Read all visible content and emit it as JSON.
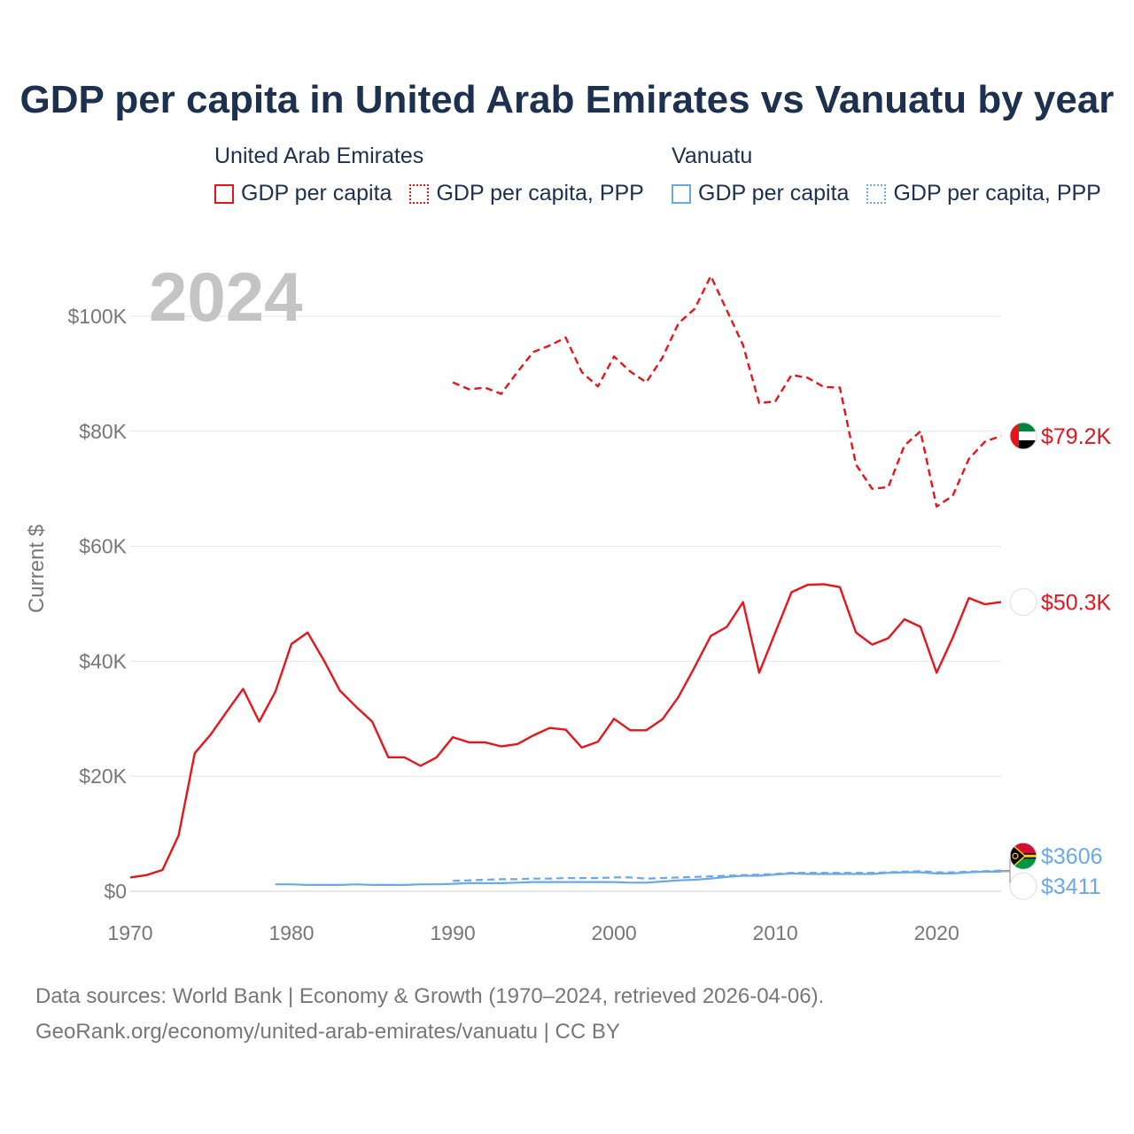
{
  "chart_data": {
    "type": "line",
    "title": "GDP per capita in United Arab Emirates vs Vanuatu by year",
    "year_label": "2024",
    "ylabel": "Current $",
    "xlabel": "",
    "xlim": [
      1970,
      2024
    ],
    "ylim": [
      0,
      110000
    ],
    "x_ticks": [
      1970,
      1980,
      1990,
      2000,
      2010,
      2020
    ],
    "y_ticks": [
      0,
      20000,
      40000,
      60000,
      80000,
      100000
    ],
    "y_tick_labels": [
      "$0",
      "$20K",
      "$40K",
      "$60K",
      "$80K",
      "$100K"
    ],
    "grid": true,
    "legend": {
      "groups": [
        {
          "country": "United Arab Emirates",
          "items": [
            "GDP per capita",
            "GDP per capita, PPP"
          ],
          "color": "#e8141b"
        },
        {
          "country": "Vanuatu",
          "items": [
            "GDP per capita",
            "GDP per capita, PPP"
          ],
          "color": "#6aa8e8"
        }
      ],
      "position": "top"
    },
    "series": [
      {
        "name": "United Arab Emirates GDP per capita",
        "country": "United Arab Emirates",
        "style": "solid",
        "color": "#e8141b",
        "end_label": "$50.3K",
        "x": [
          1970,
          1971,
          1972,
          1973,
          1974,
          1975,
          1976,
          1977,
          1978,
          1979,
          1980,
          1981,
          1982,
          1983,
          1984,
          1985,
          1986,
          1987,
          1988,
          1989,
          1990,
          1991,
          1992,
          1993,
          1994,
          1995,
          1996,
          1997,
          1998,
          1999,
          2000,
          2001,
          2002,
          2003,
          2004,
          2005,
          2006,
          2007,
          2008,
          2009,
          2010,
          2011,
          2012,
          2013,
          2014,
          2015,
          2016,
          2017,
          2018,
          2019,
          2020,
          2021,
          2022,
          2023,
          2024
        ],
        "values": [
          2400,
          2800,
          3700,
          9700,
          24000,
          27300,
          31300,
          35200,
          29500,
          34700,
          43000,
          45000,
          40200,
          34900,
          32100,
          29500,
          23300,
          23300,
          21800,
          23300,
          26800,
          25900,
          25900,
          25200,
          25600,
          27100,
          28400,
          28100,
          25000,
          26000,
          30000,
          28000,
          28000,
          29900,
          33800,
          39000,
          44400,
          46000,
          50300,
          38000,
          45000,
          52000,
          53300,
          53400,
          52900,
          45000,
          42900,
          44000,
          47300,
          46000,
          38000,
          44100,
          51000,
          49900,
          50300
        ]
      },
      {
        "name": "United Arab Emirates GDP per capita, PPP",
        "country": "United Arab Emirates",
        "style": "dashed",
        "color": "#e8141b",
        "end_label": "$79.2K",
        "x": [
          1990,
          1991,
          1992,
          1993,
          1994,
          1995,
          1996,
          1997,
          1998,
          1999,
          2000,
          2001,
          2002,
          2003,
          2004,
          2005,
          2006,
          2007,
          2008,
          2009,
          2010,
          2011,
          2012,
          2013,
          2014,
          2015,
          2016,
          2017,
          2018,
          2019,
          2020,
          2021,
          2022,
          2023,
          2024
        ],
        "values": [
          88500,
          87300,
          87600,
          86500,
          90300,
          93800,
          94900,
          96300,
          90300,
          87800,
          93000,
          90400,
          88500,
          92800,
          98800,
          101300,
          107000,
          101000,
          95000,
          84900,
          85200,
          89800,
          89300,
          87700,
          87600,
          74200,
          70000,
          70300,
          77500,
          80000,
          66900,
          68800,
          75200,
          78200,
          79200
        ]
      },
      {
        "name": "Vanuatu GDP per capita",
        "country": "Vanuatu",
        "style": "solid",
        "color": "#6aa8e8",
        "end_label": "$3411",
        "x": [
          1979,
          1980,
          1981,
          1982,
          1983,
          1984,
          1985,
          1986,
          1987,
          1988,
          1989,
          1990,
          1991,
          1992,
          1993,
          1994,
          1995,
          1996,
          1997,
          1998,
          1999,
          2000,
          2001,
          2002,
          2003,
          2004,
          2005,
          2006,
          2007,
          2008,
          2009,
          2010,
          2011,
          2012,
          2013,
          2014,
          2015,
          2016,
          2017,
          2018,
          2019,
          2020,
          2021,
          2022,
          2023,
          2024
        ],
        "values": [
          1200,
          1200,
          1100,
          1100,
          1100,
          1200,
          1100,
          1100,
          1100,
          1200,
          1200,
          1300,
          1400,
          1400,
          1400,
          1500,
          1600,
          1600,
          1600,
          1600,
          1600,
          1600,
          1500,
          1500,
          1700,
          1900,
          2000,
          2200,
          2500,
          2700,
          2700,
          2900,
          3100,
          3000,
          3000,
          3000,
          3000,
          3000,
          3200,
          3300,
          3300,
          3100,
          3100,
          3300,
          3400,
          3411
        ]
      },
      {
        "name": "Vanuatu GDP per capita, PPP",
        "country": "Vanuatu",
        "style": "dashed",
        "color": "#6aa8e8",
        "end_label": "$3606",
        "x": [
          1990,
          1991,
          1992,
          1993,
          1994,
          1995,
          1996,
          1997,
          1998,
          1999,
          2000,
          2001,
          2002,
          2003,
          2004,
          2005,
          2006,
          2007,
          2008,
          2009,
          2010,
          2011,
          2012,
          2013,
          2014,
          2015,
          2016,
          2017,
          2018,
          2019,
          2020,
          2021,
          2022,
          2023,
          2024
        ],
        "values": [
          1800,
          1900,
          2000,
          2100,
          2100,
          2200,
          2200,
          2300,
          2300,
          2300,
          2400,
          2400,
          2200,
          2300,
          2400,
          2500,
          2600,
          2700,
          2800,
          2900,
          3000,
          3200,
          3200,
          3200,
          3200,
          3200,
          3200,
          3300,
          3400,
          3500,
          3300,
          3300,
          3400,
          3500,
          3606
        ]
      }
    ]
  },
  "footer": {
    "line1": "Data sources: World Bank | Economy & Growth (1970–2024, retrieved 2026-04-06).",
    "line2": "GeoRank.org/economy/united-arab-emirates/vanuatu | CC BY"
  }
}
